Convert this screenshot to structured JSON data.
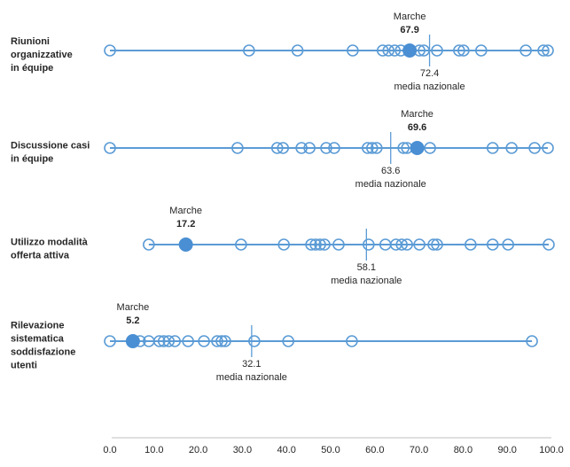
{
  "chart_data": {
    "type": "scatter",
    "subtype": "dot-strip-plot",
    "title": "",
    "highlight_series": "Marche",
    "grid": false,
    "legend_position": "none",
    "axis": {
      "min": 0,
      "max": 100,
      "step": 10,
      "tick_labels": [
        "0.0",
        "10.0",
        "20.0",
        "30.0",
        "40.0",
        "50.0",
        "60.0",
        "70.0",
        "80.0",
        "90.0",
        "100.0"
      ]
    },
    "rows": [
      {
        "label": "Riunioni organizzative in équipe",
        "label_lines": [
          "Riunioni",
          "organizzative",
          "in équipe"
        ],
        "marche_label": "Marche",
        "marche_value": 67.9,
        "marche_value_label": "67.9",
        "mean_value": 72.4,
        "mean_value_label": "72.4",
        "mean_label": "media nazionale",
        "points": [
          0,
          31.5,
          42.5,
          55,
          61.8,
          63.1,
          64.5,
          65.9,
          70.1,
          71.1,
          74.1,
          79.1,
          80.1,
          84.1,
          94.2,
          98.2,
          99.2
        ]
      },
      {
        "label": "Discussione casi in équipe",
        "label_lines": [
          "Discussione casi",
          "in équipe"
        ],
        "marche_label": "Marche",
        "marche_value": 69.6,
        "marche_value_label": "69.6",
        "mean_value": 63.6,
        "mean_value_label": "63.6",
        "mean_label": "media nazionale",
        "points": [
          0,
          28.9,
          37.9,
          39.2,
          43.4,
          45.2,
          49,
          50.8,
          58.4,
          59.4,
          60.4,
          66.5,
          67.3,
          72.5,
          86.7,
          91,
          96.2,
          99.2
        ]
      },
      {
        "label": "Utilizzo modalità offerta attiva",
        "label_lines": [
          "Utilizzo modalità",
          "offerta attiva"
        ],
        "marche_label": "Marche",
        "marche_value": 17.2,
        "marche_value_label": "17.2",
        "mean_value": 58.1,
        "mean_value_label": "58.1",
        "mean_label": "media nazionale",
        "points": [
          8.8,
          29.7,
          39.4,
          45.6,
          46.6,
          47.6,
          48.6,
          51.8,
          58.6,
          62.4,
          64.8,
          66.1,
          67.3,
          70.1,
          73.3,
          74.1,
          81.7,
          86.7,
          90.2,
          99.4
        ]
      },
      {
        "label": "Rilevazione sistematica soddisfazione utenti",
        "label_lines": [
          "Rilevazione",
          "sistematica",
          "soddisfazione",
          "utenti"
        ],
        "marche_label": "Marche",
        "marche_value": 5.2,
        "marche_value_label": "5.2",
        "mean_value": 32.1,
        "mean_value_label": "32.1",
        "mean_label": "media nazionale",
        "points": [
          0,
          6.8,
          8.8,
          11.2,
          12.2,
          13.3,
          14.7,
          17.7,
          21.3,
          24.3,
          25.3,
          26.1,
          32.7,
          40.4,
          54.8,
          95.6
        ]
      }
    ]
  },
  "colors": {
    "accent": "#5B9BD5",
    "marker_fill": "#4A8FD3",
    "axis_line": "#BFBFBF",
    "text": "#262626"
  }
}
